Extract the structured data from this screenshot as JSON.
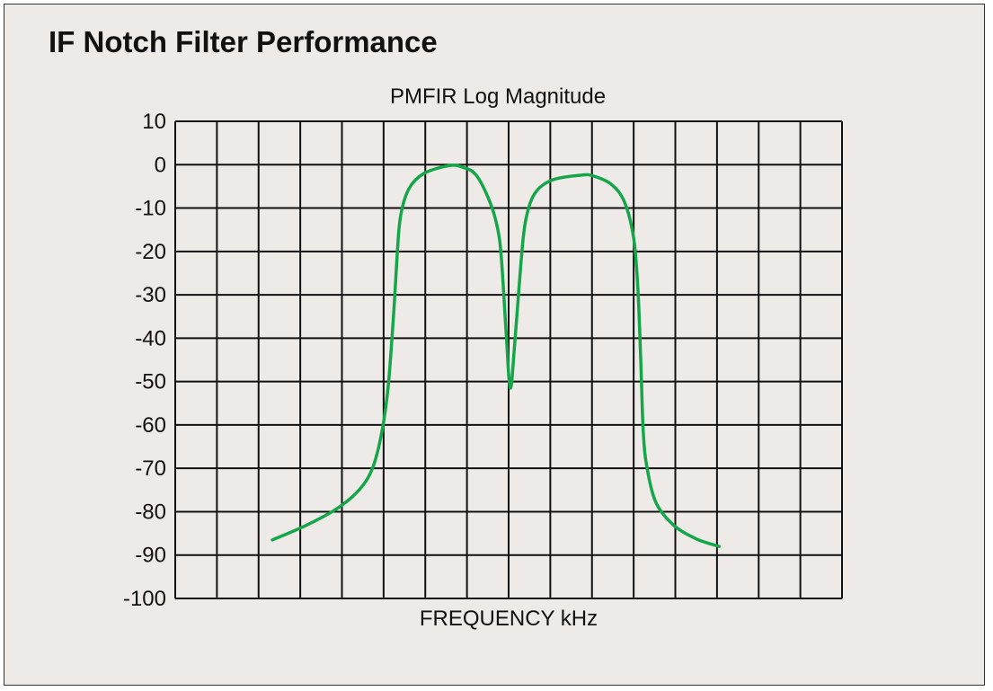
{
  "title": "IF Notch Filter Performance",
  "chart_data": {
    "type": "line",
    "title": "PMFIR  Log Magnitude",
    "xlabel": "FREQUENCY  kHz",
    "ylabel": "",
    "ylim": [
      -100,
      10
    ],
    "yticks": [
      "10",
      "0",
      "-10",
      "-20",
      "-30",
      "-40",
      "-50",
      "-60",
      "-70",
      "-80",
      "-90",
      "-100"
    ],
    "x_grid_divisions": 16,
    "xlim": [
      0,
      16
    ],
    "grid": true,
    "colors": {
      "series": "#16a64a",
      "grid": "#111111",
      "background": "#eeeae7"
    },
    "series": [
      {
        "x": [
          2.33,
          3.13,
          3.88,
          4.42,
          4.74,
          4.96,
          5.11,
          5.24,
          5.33,
          5.41,
          5.61,
          5.97,
          6.58,
          6.9,
          7.22,
          7.55,
          7.74,
          7.83,
          7.94,
          8.04,
          8.15,
          8.3,
          8.41,
          8.63,
          9.06,
          9.75,
          10.03,
          10.46,
          10.78,
          11.0,
          11.1,
          11.17,
          11.23,
          11.32,
          11.54,
          11.97,
          12.51,
          13.05
        ],
        "y": [
          -86.5,
          -83.2,
          -79.3,
          -74.9,
          -69.8,
          -61.5,
          -51.1,
          -34.5,
          -20,
          -11.7,
          -5.5,
          -2,
          -0.2,
          -0.6,
          -2.4,
          -8.6,
          -14.9,
          -22.1,
          -38.7,
          -51.5,
          -40.8,
          -22.1,
          -12.8,
          -6.6,
          -3.5,
          -2.4,
          -2.6,
          -4.5,
          -8.6,
          -16.9,
          -28.3,
          -44.9,
          -61.5,
          -69.8,
          -78,
          -83.2,
          -86.3,
          -88
        ]
      }
    ]
  }
}
